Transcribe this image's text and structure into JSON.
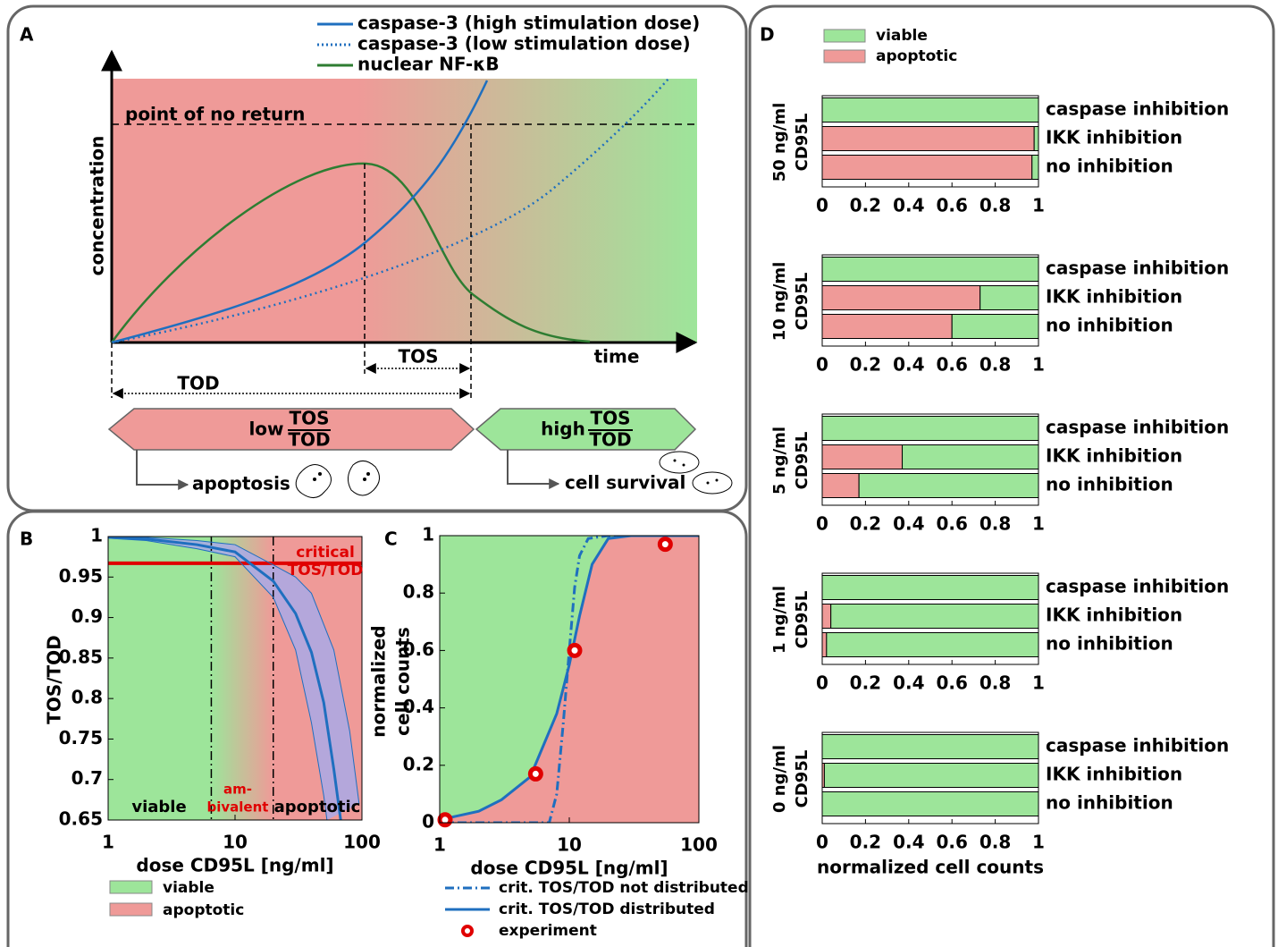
{
  "schematic": {
    "panel": "A",
    "legend": [
      {
        "name": "caspase-3 (high stimulation dose)"
      },
      {
        "name": "caspase-3 (low stimulation dose)"
      },
      {
        "name": "nuclear NF-κB"
      }
    ],
    "ylabel": "concentration",
    "xlabel": "time",
    "threshold_label": "point of no return",
    "tos": "TOS",
    "tod": "TOD",
    "low": "low",
    "low_fraction": [
      "TOS",
      "TOD"
    ],
    "high": "high",
    "high_fraction": [
      "TOS",
      "TOD"
    ],
    "outcomes": [
      "apoptosis",
      "cell survival"
    ]
  },
  "chart_data": [
    {
      "type": "line",
      "panel": "B",
      "xscale": "log",
      "xlim": [
        1,
        100
      ],
      "xticks": [
        1,
        10,
        100
      ],
      "ylim": [
        0.65,
        1
      ],
      "yticks": [
        0.65,
        0.7,
        0.75,
        0.8,
        0.85,
        0.9,
        0.95,
        1
      ],
      "xlabel": "dose CD95L [ng/ml]",
      "ylabel": "TOS/TOD",
      "band_fill": "#a9a9e6",
      "series": [
        {
          "color": "#1f6fbf",
          "x": [
            1,
            2,
            5,
            10,
            20,
            30,
            40,
            50,
            60,
            68
          ],
          "values": [
            0.999,
            0.997,
            0.99,
            0.981,
            0.945,
            0.905,
            0.857,
            0.795,
            0.713,
            0.65
          ]
        },
        {
          "color": "#1f6fbf",
          "x": [
            1,
            2,
            5,
            10,
            20,
            30,
            40,
            60,
            80,
            95
          ],
          "values": [
            1,
            0.999,
            0.995,
            0.99,
            0.965,
            0.95,
            0.93,
            0.86,
            0.76,
            0.67
          ]
        },
        {
          "color": "#1f6fbf",
          "x": [
            1,
            2,
            5,
            10,
            20,
            30,
            40,
            50,
            53
          ],
          "values": [
            0.998,
            0.995,
            0.985,
            0.975,
            0.925,
            0.86,
            0.77,
            0.68,
            0.65
          ]
        }
      ],
      "critical": {
        "value": 0.967,
        "label": [
          "critical",
          "TOS/TOD"
        ],
        "color": "#e00000"
      },
      "vlines": [
        6.5,
        20
      ],
      "regions": [
        {
          "label": [
            "viable"
          ]
        },
        {
          "label": [
            "am-",
            "bivalent"
          ],
          "color": "#e00000"
        },
        {
          "label": [
            "apoptotic"
          ]
        }
      ],
      "legend": [
        {
          "name": "viable",
          "color": "#9de59a"
        },
        {
          "name": "apoptotic",
          "color": "#ef9a98"
        }
      ]
    },
    {
      "type": "line",
      "panel": "C",
      "xscale": "log",
      "xlim": [
        1,
        100
      ],
      "xticks": [
        1,
        10,
        100
      ],
      "ylim": [
        0,
        1
      ],
      "yticks": [
        0,
        0.2,
        0.4,
        0.6,
        0.8,
        1
      ],
      "xlabel": "dose CD95L [ng/ml]",
      "ylabel": [
        "normalized",
        "cell counts"
      ],
      "region_colors": [
        "#9de59a",
        "#ef9a98"
      ],
      "series": [
        {
          "name": "crit. TOS/TOD not distributed",
          "color": "#1f6fbf",
          "dash": "dashdot",
          "x": [
            1,
            7,
            8,
            9,
            10,
            11,
            12,
            14,
            20,
            100
          ],
          "values": [
            0,
            0,
            0.1,
            0.35,
            0.6,
            0.82,
            0.93,
            0.99,
            1,
            1
          ]
        },
        {
          "name": "crit. TOS/TOD distributed",
          "color": "#1f6fbf",
          "x": [
            1,
            2,
            3,
            5,
            8,
            10,
            12,
            15,
            20,
            30,
            100
          ],
          "values": [
            0.01,
            0.04,
            0.08,
            0.16,
            0.38,
            0.55,
            0.72,
            0.9,
            0.99,
            1,
            1
          ]
        },
        {
          "name": "experiment",
          "marker": "ring",
          "color": "#e00000",
          "x": [
            1.1,
            5.5,
            11,
            55
          ],
          "values": [
            0.01,
            0.17,
            0.6,
            0.97
          ]
        }
      ]
    },
    {
      "type": "bar",
      "panel": "D",
      "orientation": "horizontal",
      "stacked": true,
      "xlim": [
        0,
        1
      ],
      "xticks": [
        0,
        0.2,
        0.4,
        0.6,
        0.8,
        1
      ],
      "ylabel": [
        "50 ng/ml",
        "CD95L"
      ],
      "categories": [
        "caspase inhibition",
        "IKK inhibition",
        "no inhibition"
      ],
      "series": [
        {
          "name": "viable",
          "color": "#9de59a",
          "values": [
            1,
            0.02,
            0.03
          ]
        },
        {
          "name": "apoptotic",
          "color": "#ef9a98",
          "values": [
            0,
            0.98,
            0.97
          ]
        }
      ]
    },
    {
      "type": "bar",
      "orientation": "horizontal",
      "stacked": true,
      "xlim": [
        0,
        1
      ],
      "xticks": [
        0,
        0.2,
        0.4,
        0.6,
        0.8,
        1
      ],
      "ylabel": [
        "10 ng/ml",
        "CD95L"
      ],
      "categories": [
        "caspase inhibition",
        "IKK inhibition",
        "no inhibition"
      ],
      "series": [
        {
          "name": "viable",
          "color": "#9de59a",
          "values": [
            1,
            0.27,
            0.4
          ]
        },
        {
          "name": "apoptotic",
          "color": "#ef9a98",
          "values": [
            0,
            0.73,
            0.6
          ]
        }
      ]
    },
    {
      "type": "bar",
      "orientation": "horizontal",
      "stacked": true,
      "xlim": [
        0,
        1
      ],
      "xticks": [
        0,
        0.2,
        0.4,
        0.6,
        0.8,
        1
      ],
      "ylabel": [
        "5 ng/ml",
        "CD95L"
      ],
      "categories": [
        "caspase inhibition",
        "IKK inhibition",
        "no inhibition"
      ],
      "series": [
        {
          "name": "viable",
          "color": "#9de59a",
          "values": [
            1,
            0.63,
            0.83
          ]
        },
        {
          "name": "apoptotic",
          "color": "#ef9a98",
          "values": [
            0,
            0.37,
            0.17
          ]
        }
      ]
    },
    {
      "type": "bar",
      "orientation": "horizontal",
      "stacked": true,
      "xlim": [
        0,
        1
      ],
      "xticks": [
        0,
        0.2,
        0.4,
        0.6,
        0.8,
        1
      ],
      "ylabel": [
        "1 ng/ml",
        "CD95L"
      ],
      "categories": [
        "caspase inhibition",
        "IKK inhibition",
        "no inhibition"
      ],
      "series": [
        {
          "name": "viable",
          "color": "#9de59a",
          "values": [
            1,
            0.96,
            0.98
          ]
        },
        {
          "name": "apoptotic",
          "color": "#ef9a98",
          "values": [
            0,
            0.04,
            0.02
          ]
        }
      ]
    },
    {
      "type": "bar",
      "orientation": "horizontal",
      "stacked": true,
      "xlim": [
        0,
        1
      ],
      "xticks": [
        0,
        0.2,
        0.4,
        0.6,
        0.8,
        1
      ],
      "ylabel": [
        "0 ng/ml",
        "CD95L"
      ],
      "xlabel": "normalized cell counts",
      "categories": [
        "caspase inhibition",
        "IKK inhibition",
        "no inhibition"
      ],
      "series": [
        {
          "name": "viable",
          "color": "#9de59a",
          "values": [
            1,
            0.99,
            1
          ]
        },
        {
          "name": "apoptotic",
          "color": "#ef9a98",
          "values": [
            0,
            0.01,
            0
          ]
        }
      ]
    }
  ]
}
